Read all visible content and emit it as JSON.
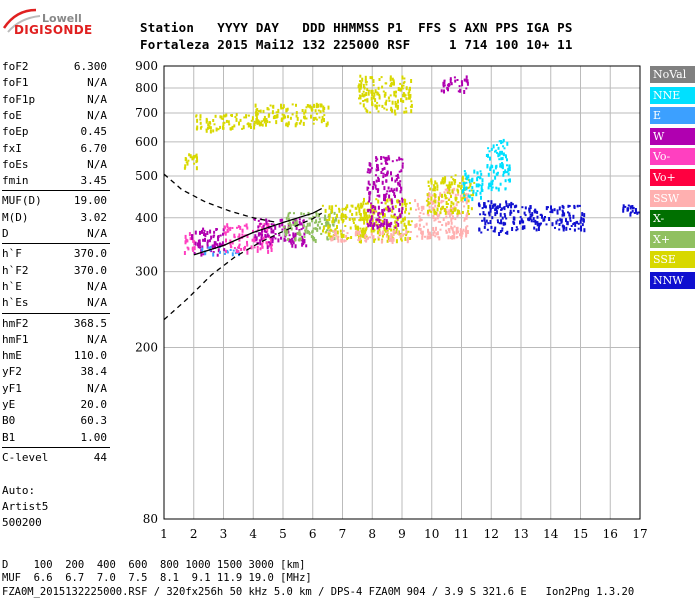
{
  "logo": {
    "line1": "Lowell",
    "line2": "DIGISONDE"
  },
  "header": {
    "labels_line": "Station   YYYY DAY   DDD HHMMSS P1  FFS S AXN PPS IGA PS",
    "values_line": "Fortaleza 2015 Mai12 132 225000 RSF     1 714 100 10+ 11"
  },
  "params": [
    {
      "key": "foF2",
      "value": "6.300"
    },
    {
      "key": "foF1",
      "value": "N/A"
    },
    {
      "key": "foF1p",
      "value": "N/A"
    },
    {
      "key": "foE",
      "value": "N/A"
    },
    {
      "key": "foEp",
      "value": "0.45"
    },
    {
      "key": "fxI",
      "value": "6.70"
    },
    {
      "key": "foEs",
      "value": "N/A"
    },
    {
      "key": "fmin",
      "value": "3.45"
    },
    {
      "key": "MUF(D)",
      "value": "19.00"
    },
    {
      "key": "M(D)",
      "value": "3.02"
    },
    {
      "key": "D",
      "value": "N/A"
    },
    {
      "key": "h`F",
      "value": "370.0"
    },
    {
      "key": "h`F2",
      "value": "370.0"
    },
    {
      "key": "h`E",
      "value": "N/A"
    },
    {
      "key": "h`Es",
      "value": "N/A"
    },
    {
      "key": "hmF2",
      "value": "368.5"
    },
    {
      "key": "hmF1",
      "value": "N/A"
    },
    {
      "key": "hmE",
      "value": "110.0"
    },
    {
      "key": "yF2",
      "value": "38.4"
    },
    {
      "key": "yF1",
      "value": "N/A"
    },
    {
      "key": "yE",
      "value": "20.0"
    },
    {
      "key": "B0",
      "value": "60.3"
    },
    {
      "key": "B1",
      "value": "1.00"
    },
    {
      "key": "C-level",
      "value": "44"
    }
  ],
  "auto": {
    "line1": "Auto:",
    "line2": "Artist5",
    "line3": "500200"
  },
  "footer": {
    "d_line": "D    100  200  400  600  800 1000 1500 3000 [km]",
    "muf_line": "MUF  6.6  6.7  7.0  7.5  8.1  9.1 11.9 19.0 [MHz]",
    "file_line": "FZA0M_2015132225000.RSF / 320fx256h 50 kHz 5.0 km / DPS-4 FZA0M 904 / 3.9 S 321.6 E   Ion2Png 1.3.20"
  },
  "legend": [
    {
      "label": "NoVal",
      "color": "#808080"
    },
    {
      "label": "NNE",
      "color": "#00e0ff"
    },
    {
      "label": "E",
      "color": "#3ca0ff"
    },
    {
      "label": "W",
      "color": "#b000b0"
    },
    {
      "label": "Vo-",
      "color": "#ff40c0"
    },
    {
      "label": "Vo+",
      "color": "#ff0040"
    },
    {
      "label": "SSW",
      "color": "#ffb0b0"
    },
    {
      "label": "X-",
      "color": "#007000"
    },
    {
      "label": "X+",
      "color": "#90c060"
    },
    {
      "label": "SSE",
      "color": "#d8d800"
    },
    {
      "label": "NNW",
      "color": "#1010d0"
    }
  ],
  "chart_data": {
    "type": "scatter",
    "xlabel": "",
    "ylabel": "",
    "x_ticks": [
      1,
      2,
      3,
      4,
      5,
      6,
      7,
      8,
      9,
      10,
      11,
      12,
      13,
      14,
      15,
      16,
      17
    ],
    "y_ticks": [
      80,
      200,
      300,
      400,
      500,
      600,
      700,
      800,
      900
    ],
    "xlim": [
      1,
      17
    ],
    "y_scale": "log",
    "ylim": [
      80,
      900
    ],
    "grid": true,
    "echo_clusters": [
      {
        "x0": 1.6,
        "x1": 2.0,
        "y0": 330,
        "y1": 375,
        "color": "#ff40c0"
      },
      {
        "x0": 1.9,
        "x1": 3.0,
        "y0": 330,
        "y1": 380,
        "color": "#b000b0"
      },
      {
        "x0": 2.2,
        "x1": 3.5,
        "y0": 330,
        "y1": 345,
        "color": "#3ca0ff"
      },
      {
        "x0": 3.0,
        "x1": 4.6,
        "y0": 335,
        "y1": 390,
        "color": "#ff40c0"
      },
      {
        "x0": 4.0,
        "x1": 5.8,
        "y0": 345,
        "y1": 400,
        "color": "#b000b0"
      },
      {
        "x0": 5.0,
        "x1": 6.8,
        "y0": 355,
        "y1": 415,
        "color": "#90c060"
      },
      {
        "x0": 6.3,
        "x1": 8.0,
        "y0": 360,
        "y1": 430,
        "color": "#d8d800"
      },
      {
        "x0": 7.5,
        "x1": 9.3,
        "y0": 355,
        "y1": 445,
        "color": "#d8d800"
      },
      {
        "x0": 6.5,
        "x1": 9.3,
        "y0": 355,
        "y1": 375,
        "color": "#ffb0b0"
      },
      {
        "x0": 9.4,
        "x1": 11.2,
        "y0": 360,
        "y1": 470,
        "color": "#ffb0b0"
      },
      {
        "x0": 9.8,
        "x1": 11.4,
        "y0": 410,
        "y1": 505,
        "color": "#d8d800"
      },
      {
        "x0": 11.0,
        "x1": 11.7,
        "y0": 440,
        "y1": 520,
        "color": "#00e0ff"
      },
      {
        "x0": 11.8,
        "x1": 12.6,
        "y0": 470,
        "y1": 610,
        "color": "#00e0ff"
      },
      {
        "x0": 11.5,
        "x1": 12.7,
        "y0": 370,
        "y1": 440,
        "color": "#1010d0"
      },
      {
        "x0": 12.7,
        "x1": 15.1,
        "y0": 375,
        "y1": 430,
        "color": "#1010d0"
      },
      {
        "x0": 16.4,
        "x1": 17.0,
        "y0": 410,
        "y1": 430,
        "color": "#1010d0"
      },
      {
        "x0": 2.0,
        "x1": 4.2,
        "y0": 640,
        "y1": 700,
        "color": "#d8d800"
      },
      {
        "x0": 4.0,
        "x1": 6.5,
        "y0": 660,
        "y1": 740,
        "color": "#d8d800"
      },
      {
        "x0": 7.5,
        "x1": 9.3,
        "y0": 700,
        "y1": 860,
        "color": "#d8d800"
      },
      {
        "x0": 10.3,
        "x1": 11.2,
        "y0": 790,
        "y1": 860,
        "color": "#b000b0"
      },
      {
        "x0": 7.8,
        "x1": 9.0,
        "y0": 380,
        "y1": 560,
        "color": "#b000b0"
      },
      {
        "x0": 1.6,
        "x1": 2.1,
        "y0": 525,
        "y1": 565,
        "color": "#d8d800"
      }
    ],
    "virtual_height_curve": {
      "x": [
        2.0,
        3.0,
        4.0,
        5.0,
        6.0,
        6.3
      ],
      "y": [
        328,
        345,
        370,
        390,
        410,
        420
      ],
      "color": "#000000"
    },
    "profile_curve_upper": {
      "x": [
        1.0,
        1.6,
        2.4,
        3.2,
        4.0,
        4.8
      ],
      "y": [
        505,
        465,
        435,
        415,
        400,
        390
      ],
      "color": "#000000",
      "style": "dashed"
    },
    "profile_curve_lower": {
      "x": [
        1.0,
        1.8,
        2.6,
        3.4,
        4.2,
        5.0,
        6.0,
        6.3
      ],
      "y": [
        232,
        260,
        295,
        325,
        350,
        372,
        398,
        410
      ],
      "color": "#000000",
      "style": "dashed"
    }
  }
}
